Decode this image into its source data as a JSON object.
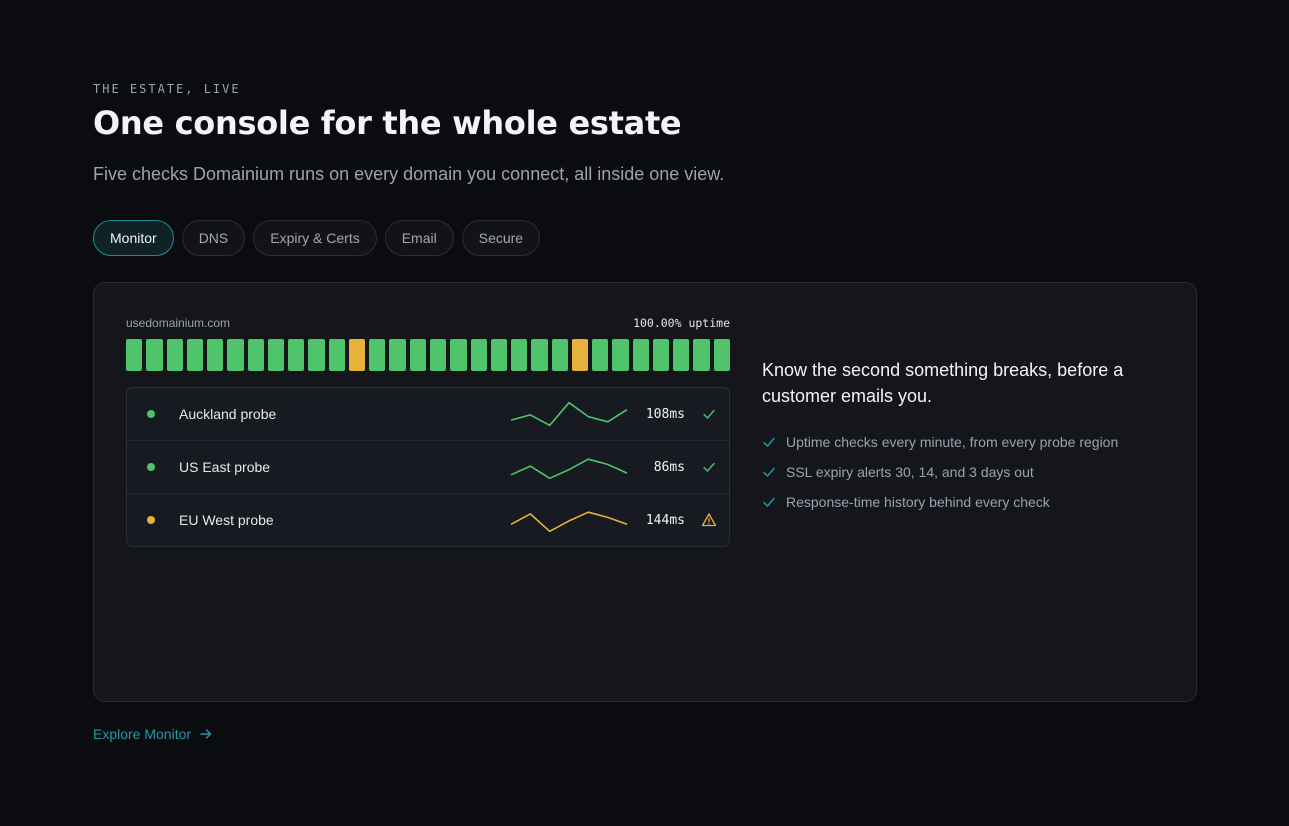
{
  "section": {
    "eyebrow": "THE ESTATE, LIVE",
    "title": "One console for the whole estate",
    "subtitle": "Five checks Domainium runs on every domain you connect, all inside one view."
  },
  "tabs": [
    {
      "label": "Monitor",
      "active": true
    },
    {
      "label": "DNS",
      "active": false
    },
    {
      "label": "Expiry & Certs",
      "active": false
    },
    {
      "label": "Email",
      "active": false
    },
    {
      "label": "Secure",
      "active": false
    }
  ],
  "monitor": {
    "domain": "usedomainium.com",
    "uptime": "100.00% uptime",
    "history": [
      "up",
      "up",
      "up",
      "up",
      "up",
      "up",
      "up",
      "up",
      "up",
      "up",
      "up",
      "warn",
      "up",
      "up",
      "up",
      "up",
      "up",
      "up",
      "up",
      "up",
      "up",
      "up",
      "warn",
      "up",
      "up",
      "up",
      "up",
      "up",
      "up",
      "up"
    ],
    "colors": {
      "up": "#4fc46d",
      "warn": "#e6b23a",
      "accent": "#1f9aa7"
    },
    "probes": [
      {
        "name": "Auckland probe",
        "latency": "108ms",
        "status": "ok",
        "icon": "check-icon",
        "spark": [
          8,
          14,
          2,
          28,
          12,
          6,
          20
        ]
      },
      {
        "name": "US East probe",
        "latency": "86ms",
        "status": "ok",
        "icon": "check-icon",
        "spark": [
          6,
          16,
          2,
          12,
          24,
          18,
          8
        ]
      },
      {
        "name": "EU West probe",
        "latency": "144ms",
        "status": "warn",
        "icon": "warning-triangle-icon",
        "spark": [
          10,
          22,
          2,
          14,
          24,
          18,
          10
        ]
      }
    ]
  },
  "info": {
    "headline": "Know the second something breaks, before a customer emails you.",
    "features": [
      "Uptime checks every minute, from every probe region",
      "SSL expiry alerts 30, 14, and 3 days out",
      "Response-time history behind every check"
    ]
  },
  "cta": {
    "label": "Explore Monitor",
    "icon": "arrow-right-icon"
  }
}
